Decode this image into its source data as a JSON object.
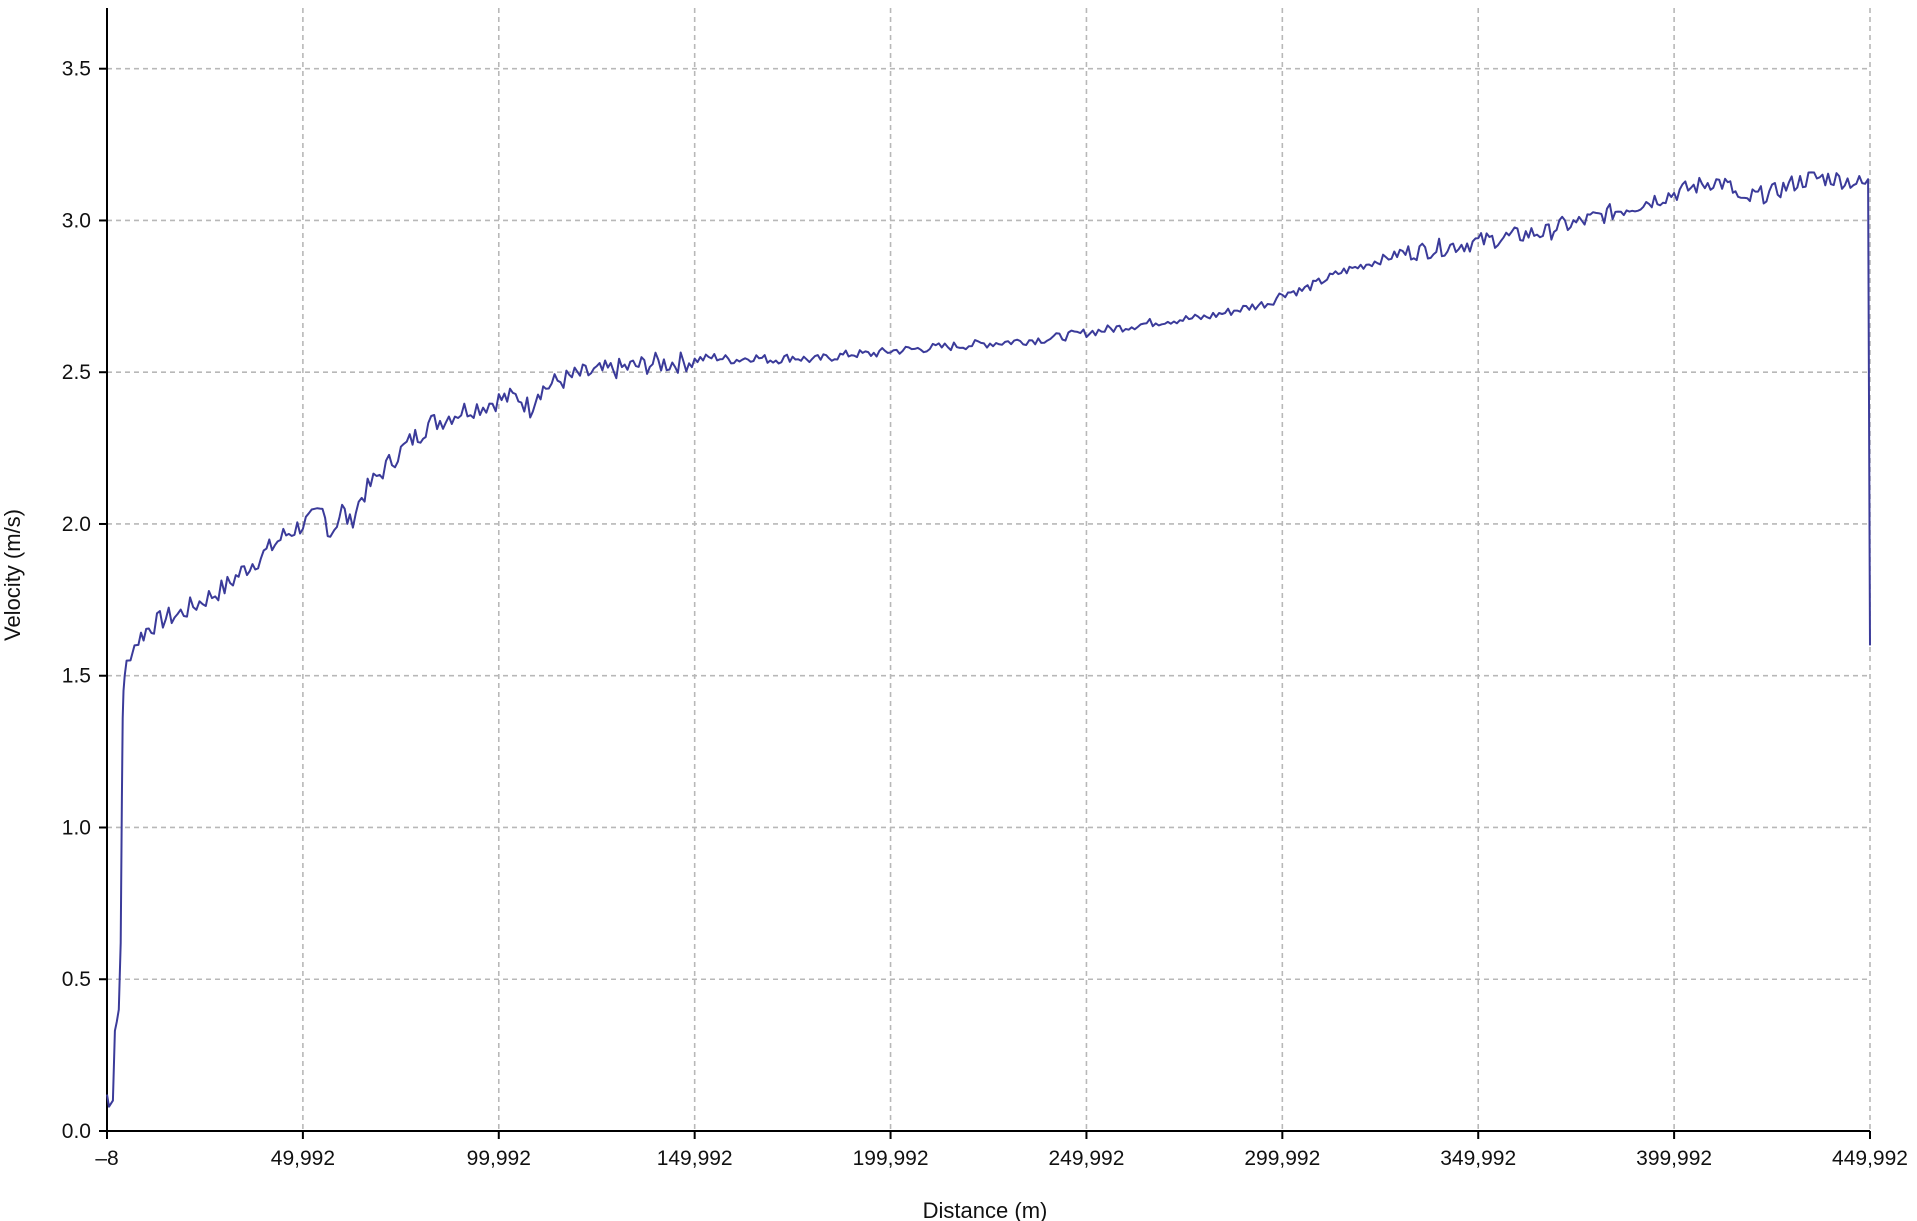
{
  "chart_data": {
    "type": "line",
    "title": "",
    "xlabel": "Distance (m)",
    "ylabel": "Velocity (m/s)",
    "xlim": [
      -8,
      449992
    ],
    "ylim": [
      0,
      3.7
    ],
    "x_tick_labels": [
      "–8",
      "49,992",
      "99,992",
      "149,992",
      "199,992",
      "249,992",
      "299,992",
      "349,992",
      "399,992",
      "449,992"
    ],
    "x_tick_values": [
      -8,
      49992,
      99992,
      149992,
      199992,
      249992,
      299992,
      349992,
      399992,
      449992
    ],
    "y_tick_labels": [
      "0.0",
      "0.5",
      "1.0",
      "1.5",
      "2.0",
      "2.5",
      "3.0",
      "3.5"
    ],
    "y_tick_values": [
      0,
      0.5,
      1.0,
      1.5,
      2.0,
      2.5,
      3.0,
      3.5
    ],
    "grid": true,
    "line_color": "#3b3b9a",
    "series": [
      {
        "x": [
          -8,
          500,
          1000,
          1500,
          2000,
          2500,
          3000,
          3500,
          3800,
          4000,
          4200,
          4500,
          5000,
          6000,
          7000,
          8000,
          10000,
          12000,
          15000,
          18000,
          22000,
          26000,
          30000,
          35000,
          40000,
          45000,
          50000,
          53000,
          55000,
          57000,
          58000,
          60000,
          62000,
          65000,
          68000,
          72000,
          75000,
          78000,
          80000,
          82000,
          85000,
          88000,
          92000,
          96000,
          100000,
          105000,
          108000,
          110000,
          112000,
          115000,
          118000,
          120000,
          125000,
          130000,
          135000,
          140000,
          145000,
          150000,
          155000,
          160000,
          165000,
          170000,
          175000,
          180000,
          185000,
          190000,
          195000,
          200000,
          210000,
          220000,
          230000,
          240000,
          250000,
          260000,
          270000,
          280000,
          290000,
          297000,
          300000,
          305000,
          310000,
          315000,
          320000,
          325000,
          330000,
          335000,
          340000,
          345000,
          350000,
          355000,
          360000,
          365000,
          368000,
          370000,
          375000,
          380000,
          385000,
          390000,
          395000,
          400000,
          405000,
          410000,
          413000,
          415000,
          417000,
          418000,
          420000,
          425000,
          430000,
          435000,
          440000,
          445000,
          448000,
          449500,
          449992
        ],
        "y": [
          0.12,
          0.08,
          0.09,
          0.1,
          0.33,
          0.36,
          0.4,
          0.62,
          1.1,
          1.36,
          1.45,
          1.5,
          1.55,
          1.58,
          1.6,
          1.62,
          1.65,
          1.67,
          1.69,
          1.7,
          1.73,
          1.76,
          1.79,
          1.85,
          1.9,
          1.96,
          2.0,
          2.02,
          2.04,
          1.97,
          1.99,
          2.05,
          2.0,
          2.09,
          2.14,
          2.2,
          2.24,
          2.28,
          2.3,
          2.33,
          2.34,
          2.36,
          2.38,
          2.39,
          2.41,
          2.42,
          2.38,
          2.44,
          2.45,
          2.47,
          2.48,
          2.49,
          2.5,
          2.51,
          2.52,
          2.53,
          2.53,
          2.54,
          2.55,
          2.54,
          2.55,
          2.54,
          2.55,
          2.54,
          2.55,
          2.56,
          2.56,
          2.57,
          2.58,
          2.59,
          2.6,
          2.61,
          2.63,
          2.65,
          2.67,
          2.68,
          2.71,
          2.73,
          2.76,
          2.77,
          2.8,
          2.83,
          2.85,
          2.87,
          2.89,
          2.9,
          2.91,
          2.92,
          2.93,
          2.94,
          2.95,
          2.96,
          2.96,
          2.98,
          2.99,
          3.01,
          3.03,
          3.05,
          3.07,
          3.09,
          3.11,
          3.13,
          3.12,
          3.1,
          3.06,
          3.05,
          3.08,
          3.09,
          3.12,
          3.14,
          3.14,
          3.13,
          3.12,
          3.12,
          1.6
        ]
      }
    ]
  }
}
